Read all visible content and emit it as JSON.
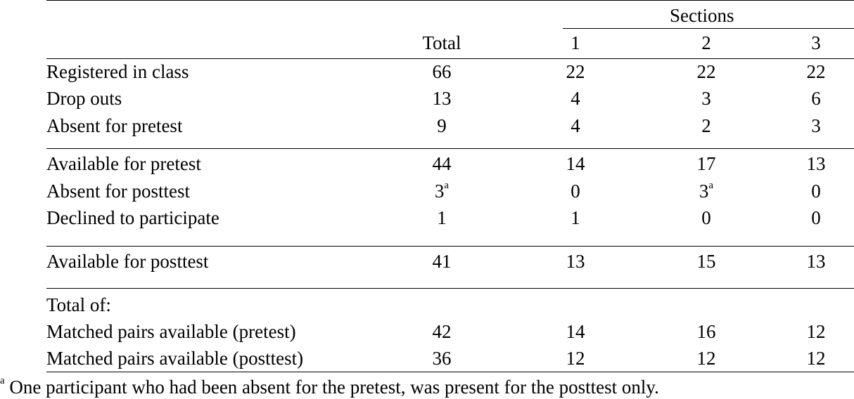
{
  "header": {
    "group_label": "Sections",
    "columns": [
      "Total",
      "1",
      "2",
      "3"
    ]
  },
  "rows": [
    {
      "label": "Registered in class",
      "total": "66",
      "s1": "22",
      "s2": "22",
      "s3": "22"
    },
    {
      "label": "Drop outs",
      "total": "13",
      "s1": "4",
      "s2": "3",
      "s3": "6"
    },
    {
      "label": "Absent for pretest",
      "total": "9",
      "s1": "4",
      "s2": "2",
      "s3": "3"
    },
    {
      "label": "Available for pretest",
      "total": "44",
      "s1": "14",
      "s2": "17",
      "s3": "13"
    },
    {
      "label": "Absent for posttest",
      "total": "3",
      "total_note": "a",
      "s1": "0",
      "s2": "3",
      "s2_note": "a",
      "s3": "0"
    },
    {
      "label": "Declined to participate",
      "total": "1",
      "s1": "1",
      "s2": "0",
      "s3": "0"
    },
    {
      "label": "Available for posttest",
      "total": "41",
      "s1": "13",
      "s2": "15",
      "s3": "13"
    },
    {
      "label": "Total of:"
    },
    {
      "label": "Matched pairs available (pretest)",
      "total": "42",
      "s1": "14",
      "s2": "16",
      "s3": "12"
    },
    {
      "label": "Matched pairs available (posttest)",
      "total": "36",
      "s1": "12",
      "s2": "12",
      "s3": "12"
    }
  ],
  "footnote": {
    "marker": "a",
    "text": " One participant who had been absent for the pretest, was present for the posttest only."
  }
}
